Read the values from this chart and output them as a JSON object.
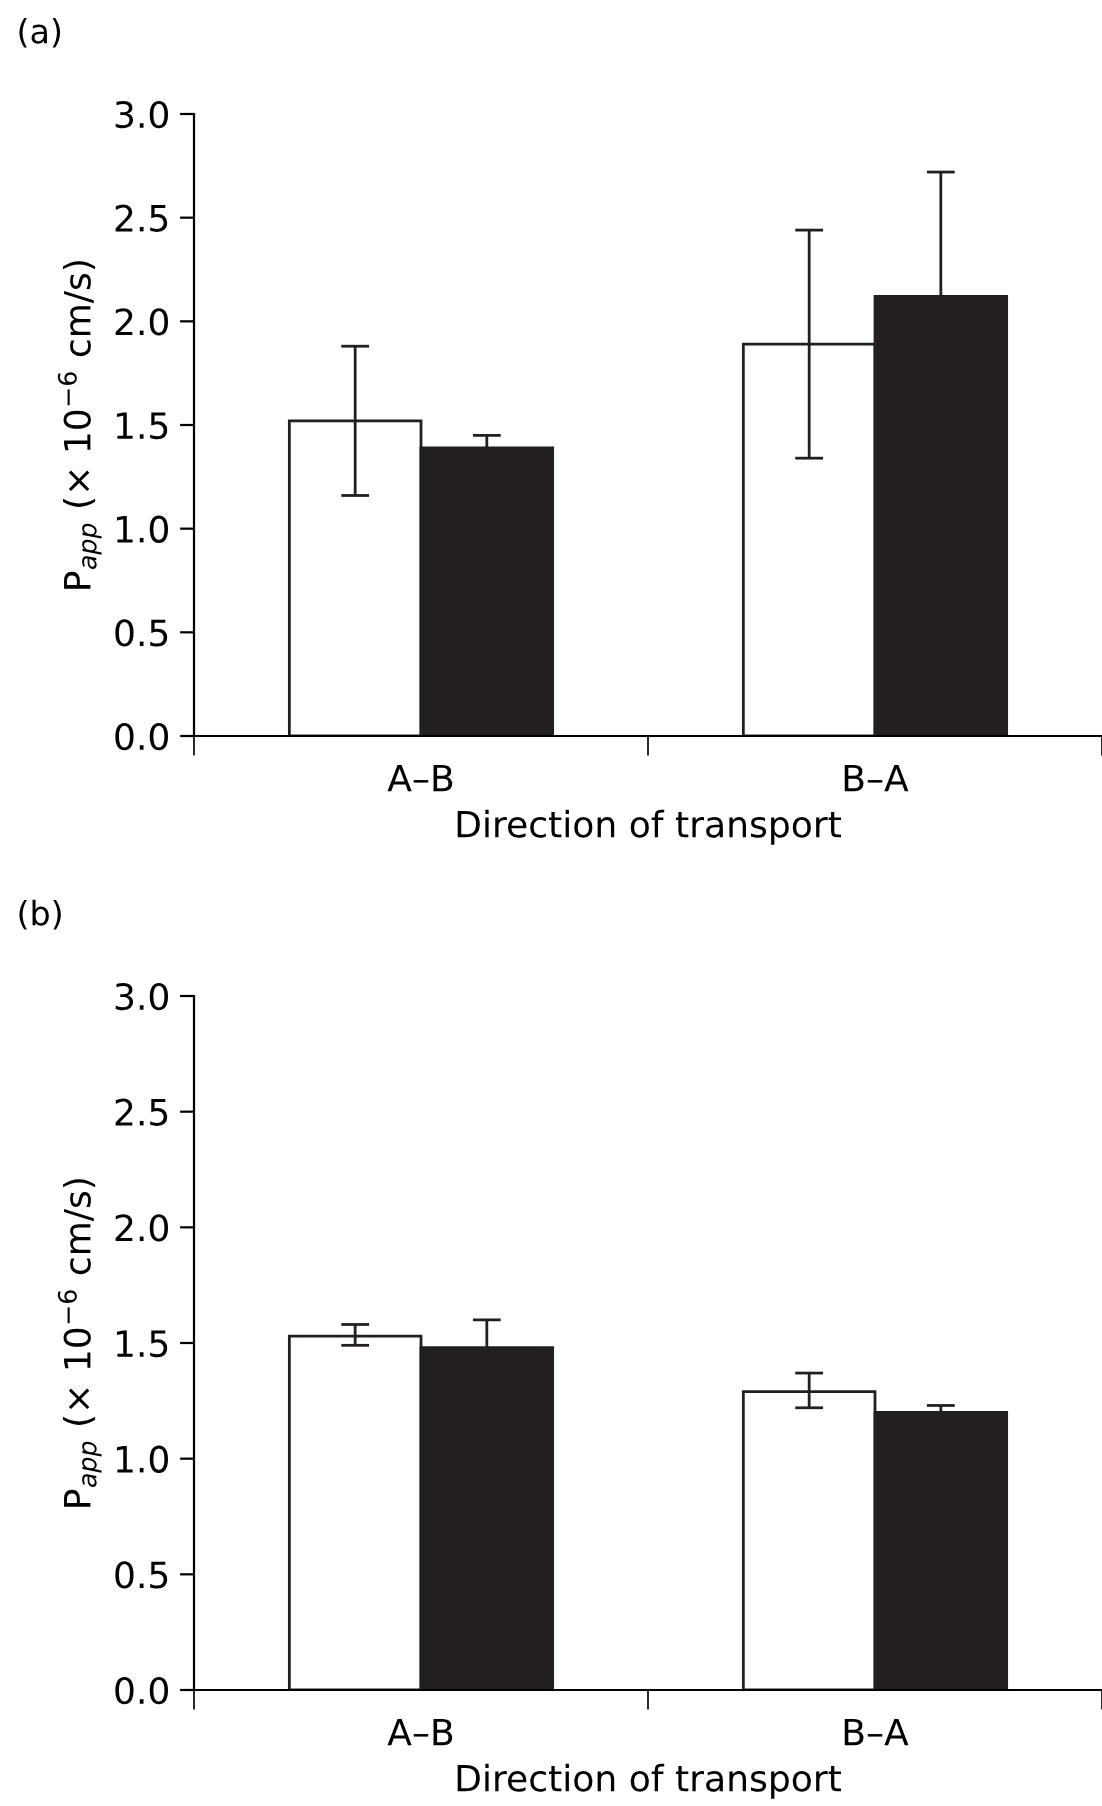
{
  "chart_data": [
    {
      "type": "bar",
      "title": "(a)",
      "xlabel": "Direction of transport",
      "ylabel": "P$_{app}$ (× 10$^{−6}$ cm/s)",
      "categories": [
        "A–B",
        "B–A"
      ],
      "ylim": [
        0,
        3.0
      ],
      "yticks": [
        {
          "value": 0,
          "label": "0.0"
        },
        {
          "value": 0.5,
          "label": "0.5"
        },
        {
          "value": 1.0,
          "label": "1.0"
        },
        {
          "value": 1.5,
          "label": "1.5"
        },
        {
          "value": 2.0,
          "label": "2.0"
        },
        {
          "value": 2.5,
          "label": "2.5"
        },
        {
          "value": 3.0,
          "label": "3.0"
        }
      ],
      "grid": false,
      "legend": false,
      "series": [
        {
          "color": "#ffffff",
          "values": [
            1.52,
            1.89
          ],
          "errors": [
            [
              1.16,
              1.88
            ],
            [
              1.34,
              2.44
            ]
          ]
        },
        {
          "color": "#231f20",
          "values": [
            1.39,
            2.12
          ],
          "errors": [
            0.06,
            0.6
          ]
        }
      ]
    },
    {
      "type": "bar",
      "title": "(b)",
      "xlabel": "Direction of transport",
      "ylabel": "P$_{app}$ (× 10$^{−6}$ cm/s)",
      "categories": [
        "A–B",
        "B–A"
      ],
      "ylim": [
        0,
        3.0
      ],
      "yticks": [
        {
          "value": 0,
          "label": "0.0"
        },
        {
          "value": 0.5,
          "label": "0.5"
        },
        {
          "value": 1.0,
          "label": "1.0"
        },
        {
          "value": 1.5,
          "label": "1.5"
        },
        {
          "value": 2.0,
          "label": "2.0"
        },
        {
          "value": 2.5,
          "label": "2.5"
        },
        {
          "value": 3.0,
          "label": "3.0"
        }
      ],
      "grid": false,
      "legend": false,
      "series": [
        {
          "color": "#ffffff",
          "values": [
            1.53,
            1.29
          ],
          "errors": [
            [
              1.49,
              1.58
            ],
            [
              1.22,
              1.37
            ]
          ]
        },
        {
          "color": "#231f20",
          "values": [
            1.48,
            1.2
          ],
          "errors": [
            0.12,
            0.03
          ]
        }
      ]
    }
  ]
}
